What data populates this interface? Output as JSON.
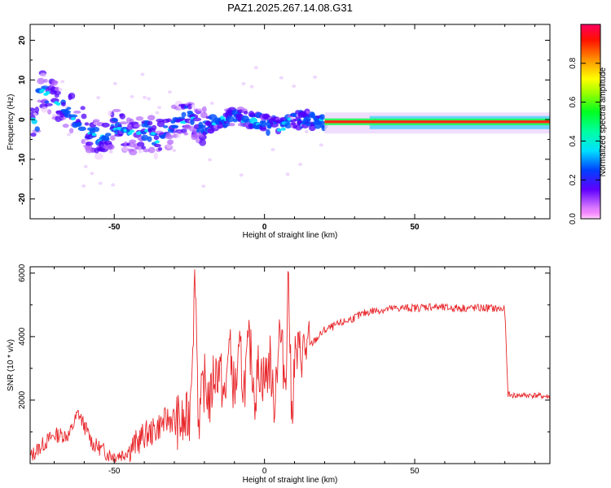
{
  "figure": {
    "title": "PAZ1.2025.267.14.08.G31"
  },
  "chart_data": [
    {
      "type": "heatmap",
      "title": "",
      "xlabel": "Height of straight line (km)",
      "ylabel": "Frequency (Hz)",
      "xlim": [
        -78,
        95
      ],
      "ylim": [
        -25,
        24
      ],
      "xticks": [
        -50,
        0,
        50
      ],
      "yticks": [
        -20,
        -10,
        0,
        10,
        20
      ],
      "colorbar": {
        "label": "Normalized spectral amplitude",
        "range": [
          0,
          1
        ],
        "ticks": [
          0.0,
          0.2,
          0.4,
          0.6,
          0.8
        ],
        "colormap": [
          "#ff00ff",
          "#5000ff",
          "#0040ff",
          "#00e0ff",
          "#00ff40",
          "#a0ff00",
          "#ffff00",
          "#ff8000",
          "#ff0000",
          "#ff0060"
        ]
      },
      "ridge": [
        {
          "x": -75,
          "f": 8
        },
        {
          "x": -70,
          "f": 5
        },
        {
          "x": -65,
          "f": 2
        },
        {
          "x": -60,
          "f": -2
        },
        {
          "x": -55,
          "f": -5
        },
        {
          "x": -50,
          "f": -2
        },
        {
          "x": -45,
          "f": -4
        },
        {
          "x": -40,
          "f": -3
        },
        {
          "x": -35,
          "f": -5
        },
        {
          "x": -30,
          "f": -1
        },
        {
          "x": -25,
          "f": 1
        },
        {
          "x": -20,
          "f": -2
        },
        {
          "x": -15,
          "f": 0
        },
        {
          "x": -10,
          "f": 1
        },
        {
          "x": -5,
          "f": 0
        },
        {
          "x": 0,
          "f": -1
        },
        {
          "x": 5,
          "f": -2
        },
        {
          "x": 10,
          "f": 0
        },
        {
          "x": 15,
          "f": 0
        },
        {
          "x": 20,
          "f": -1
        },
        {
          "x": 50,
          "f": -1
        },
        {
          "x": 95,
          "f": 0
        }
      ]
    },
    {
      "type": "line",
      "title": "",
      "xlabel": "Height of straight line (km)",
      "ylabel": "SNR (10 * v/v)",
      "xlim": [
        -78,
        95
      ],
      "ylim": [
        0,
        6200
      ],
      "xticks": [
        -50,
        0,
        50
      ],
      "yticks": [
        2000,
        4000,
        6000
      ],
      "color": "#e8282c",
      "series": [
        {
          "x": [
            -78,
            -75,
            -70,
            -65,
            -62,
            -60,
            -57,
            -55,
            -52,
            -50,
            -47,
            -45,
            -42,
            -40,
            -37,
            -35,
            -32,
            -30,
            -27,
            -25,
            -23,
            -22,
            -20,
            -18,
            -17,
            -15,
            -13,
            -12,
            -10,
            -8,
            -7,
            -5,
            -3,
            -2,
            0,
            2,
            3,
            5,
            7,
            8,
            9,
            10,
            12,
            15,
            18,
            20,
            25,
            30,
            35,
            40,
            45,
            50,
            55,
            60,
            65,
            70,
            75,
            80,
            81,
            82,
            85,
            90,
            95
          ],
          "values": [
            200,
            500,
            900,
            900,
            1600,
            1200,
            600,
            500,
            300,
            250,
            300,
            450,
            700,
            900,
            1000,
            1200,
            1400,
            1400,
            1200,
            1500,
            6100,
            1300,
            2600,
            1900,
            2800,
            3000,
            1800,
            4000,
            2200,
            3500,
            2300,
            3800,
            2100,
            3100,
            2600,
            3300,
            1700,
            4200,
            2600,
            6200,
            1300,
            3300,
            3500,
            3700,
            4000,
            4200,
            4400,
            4600,
            4800,
            4850,
            4900,
            4900,
            4950,
            4900,
            4900,
            4900,
            4900,
            4850,
            2200,
            2150,
            2150,
            2150,
            2100
          ]
        }
      ]
    }
  ]
}
